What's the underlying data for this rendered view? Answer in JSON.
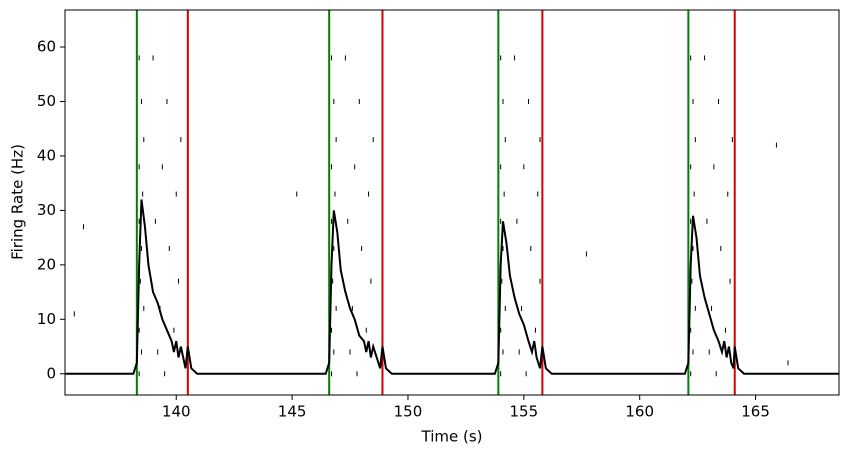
{
  "chart_data": {
    "type": "line",
    "xlabel": "Time (s)",
    "ylabel": "Firing Rate (Hz)",
    "xlim": [
      135.2,
      168.6
    ],
    "ylim": [
      -3.9,
      66.8
    ],
    "xticks": [
      140,
      145,
      150,
      155,
      160,
      165
    ],
    "yticks": [
      0,
      10,
      20,
      30,
      40,
      50,
      60
    ],
    "grid": false,
    "series": [
      {
        "color": "#000000",
        "x": [
          135.2,
          138.15,
          138.3,
          138.4,
          138.5,
          138.65,
          138.8,
          139.0,
          139.2,
          139.4,
          139.6,
          139.8,
          139.9,
          140.0,
          140.1,
          140.2,
          140.4,
          140.5,
          140.65,
          140.9,
          146.45,
          146.6,
          146.7,
          146.8,
          146.95,
          147.1,
          147.3,
          147.5,
          147.7,
          147.9,
          148.1,
          148.2,
          148.3,
          148.4,
          148.5,
          148.8,
          148.9,
          149.05,
          149.3,
          153.75,
          153.9,
          154.0,
          154.1,
          154.25,
          154.4,
          154.6,
          154.8,
          155.0,
          155.2,
          155.35,
          155.45,
          155.55,
          155.7,
          155.8,
          155.95,
          156.2,
          161.95,
          162.1,
          162.2,
          162.3,
          162.45,
          162.6,
          162.8,
          163.0,
          163.2,
          163.4,
          163.55,
          163.65,
          163.75,
          163.85,
          163.95,
          164.05,
          164.1,
          164.25,
          164.5,
          168.6
        ],
        "values": [
          0,
          0,
          2,
          20,
          32,
          27,
          20,
          15,
          13,
          10,
          8,
          6,
          4,
          6,
          3,
          5,
          1,
          5,
          1,
          0,
          0,
          2,
          20,
          30,
          26,
          19,
          15,
          12,
          10,
          7,
          6,
          4,
          6,
          3,
          5,
          1,
          5,
          1,
          0,
          0,
          2,
          20,
          28,
          24,
          18,
          14,
          11,
          9,
          6,
          4,
          6,
          3,
          1,
          5,
          1,
          0,
          0,
          2,
          20,
          29,
          25,
          18,
          14,
          11,
          8,
          6,
          4,
          6,
          3,
          5,
          2,
          1,
          5,
          1,
          0,
          0
        ]
      }
    ],
    "vlines": [
      {
        "color": "#008000",
        "x": [
          138.3,
          146.6,
          153.9,
          162.1
        ]
      },
      {
        "color": "#d40000",
        "x": [
          140.5,
          148.9,
          155.8,
          164.1
        ]
      }
    ],
    "raster_color": "#000000",
    "raster": [
      {
        "y": 0,
        "x": [
          138.4,
          139.5,
          146.7,
          147.8,
          154.0,
          155.1,
          162.2,
          163.3
        ]
      },
      {
        "y": 4,
        "x": [
          138.5,
          139.2,
          146.8,
          147.5,
          154.1,
          154.8,
          162.3,
          163.0
        ]
      },
      {
        "y": 8,
        "x": [
          138.4,
          139.9,
          146.7,
          148.2,
          154.0,
          155.5,
          162.2,
          163.7
        ]
      },
      {
        "y": 12,
        "x": [
          138.6,
          139.3,
          146.9,
          147.6,
          154.2,
          154.9,
          162.4,
          163.1
        ]
      },
      {
        "y": 17,
        "x": [
          138.45,
          140.1,
          146.75,
          148.4,
          154.05,
          155.7,
          162.25,
          163.9
        ]
      },
      {
        "y": 23,
        "x": [
          138.5,
          139.7,
          146.8,
          148.0,
          154.1,
          155.3,
          162.3,
          163.5
        ]
      },
      {
        "y": 28,
        "x": [
          138.4,
          139.1,
          146.7,
          147.4,
          154.0,
          154.7,
          162.2,
          162.9
        ]
      },
      {
        "y": 33,
        "x": [
          138.55,
          140.0,
          146.85,
          148.3,
          154.15,
          155.6,
          162.35,
          163.8
        ]
      },
      {
        "y": 38,
        "x": [
          138.4,
          139.4,
          146.7,
          147.7,
          154.0,
          155.0,
          162.2,
          163.2
        ]
      },
      {
        "y": 43,
        "x": [
          138.6,
          140.2,
          146.9,
          148.5,
          154.2,
          155.7,
          162.4,
          164.0
        ]
      },
      {
        "y": 50,
        "x": [
          138.5,
          139.6,
          146.8,
          147.9,
          154.1,
          155.2,
          162.3,
          163.4
        ]
      },
      {
        "y": 58,
        "x": [
          138.4,
          139.0,
          146.7,
          147.3,
          154.0,
          154.6,
          162.2,
          162.8
        ]
      },
      {
        "y": 11,
        "x": [
          135.6
        ]
      },
      {
        "y": 27,
        "x": [
          136.0
        ]
      },
      {
        "y": 33,
        "x": [
          145.2
        ]
      },
      {
        "y": 22,
        "x": [
          157.7
        ]
      },
      {
        "y": 42,
        "x": [
          165.9
        ]
      },
      {
        "y": 2,
        "x": [
          166.4
        ]
      }
    ]
  }
}
